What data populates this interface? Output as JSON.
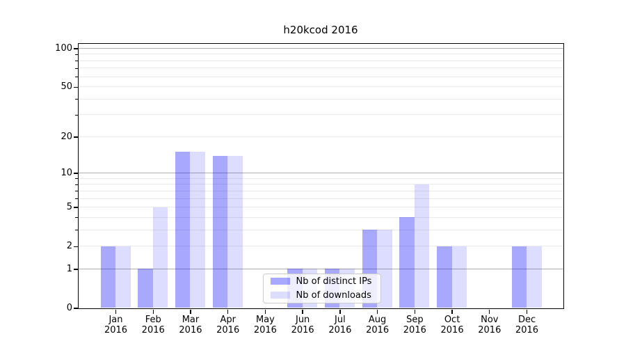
{
  "chart_data": {
    "type": "bar",
    "title": "h20kcod 2016",
    "x_axis": {
      "months": [
        "Jan",
        "Feb",
        "Mar",
        "Apr",
        "May",
        "Jun",
        "Jul",
        "Aug",
        "Sep",
        "Oct",
        "Nov",
        "Dec"
      ],
      "year": "2016"
    },
    "y_axis": {
      "scale": "log1p",
      "ylim": [
        0,
        109
      ],
      "ticks": [
        {
          "value": 0,
          "label": "0"
        },
        {
          "value": 1,
          "label": "1"
        },
        {
          "value": 2,
          "label": "2"
        },
        {
          "value": 5,
          "label": "5"
        },
        {
          "value": 10,
          "label": "10"
        },
        {
          "value": 20,
          "label": "20"
        },
        {
          "value": 50,
          "label": "50"
        },
        {
          "value": 100,
          "label": "100"
        }
      ],
      "major_grid_values": [
        1,
        10,
        100
      ],
      "minor_grid_values": [
        2,
        3,
        4,
        5,
        6,
        7,
        8,
        9,
        20,
        30,
        40,
        50,
        60,
        70,
        80,
        90
      ]
    },
    "series": [
      {
        "name": "Nb of distinct IPs",
        "color": "rgba(0,0,255,0.34)",
        "values": [
          2,
          1,
          15,
          14,
          0,
          1,
          1,
          3,
          4,
          2,
          0,
          2
        ]
      },
      {
        "name": "Nb of downloads",
        "color": "rgba(0,0,255,0.135)",
        "values": [
          2,
          5,
          15,
          14,
          0,
          1,
          1,
          3,
          8,
          2,
          0,
          2
        ]
      }
    ],
    "legend": {
      "position": "lower-center"
    },
    "grid": {
      "major_color": "#b0b0b0",
      "minor_color": "#e9e9e9"
    },
    "colors": {
      "spine": "#000000",
      "background": "#ffffff",
      "legend_border": "#cccccc"
    }
  }
}
